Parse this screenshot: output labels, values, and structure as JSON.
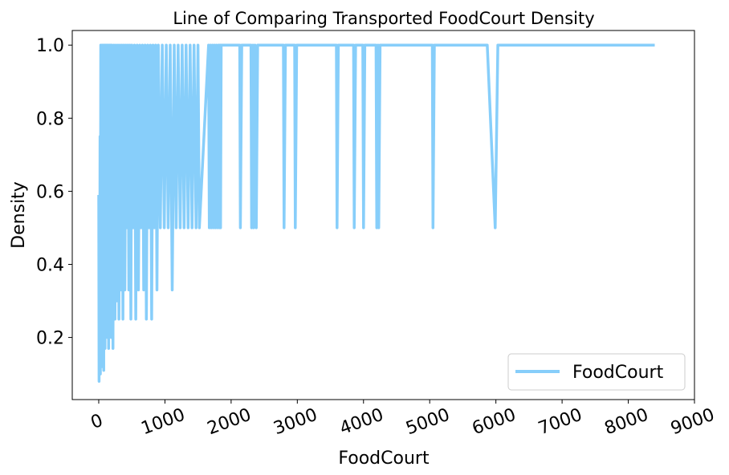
{
  "chart_data": {
    "type": "line",
    "title": "Line of Comparing Transported FoodCourt Density",
    "xlabel": "FoodCourt",
    "ylabel": "Density",
    "xlim": [
      -400,
      9000
    ],
    "ylim": [
      0.03,
      1.04
    ],
    "x_ticks": [
      0,
      1000,
      2000,
      3000,
      4000,
      5000,
      6000,
      7000,
      8000,
      9000
    ],
    "x_tick_labels": [
      "0",
      "1000",
      "2000",
      "3000",
      "4000",
      "5000",
      "6000",
      "7000",
      "8000",
      "9000"
    ],
    "x_tick_rotation_deg": 20,
    "y_ticks": [
      0.2,
      0.4,
      0.6,
      0.8,
      1.0
    ],
    "y_tick_labels": [
      "0.2",
      "0.4",
      "0.6",
      "0.8",
      "1.0"
    ],
    "grid": false,
    "legend": {
      "position": "lower-right",
      "entries": [
        "FoodCourt"
      ]
    },
    "series": [
      {
        "name": "FoodCourt",
        "color": "#87CEFA",
        "x": [
          0,
          5,
          10,
          15,
          20,
          25,
          30,
          35,
          40,
          45,
          50,
          55,
          60,
          65,
          70,
          75,
          80,
          85,
          90,
          95,
          100,
          110,
          120,
          130,
          140,
          150,
          160,
          170,
          180,
          190,
          200,
          215,
          230,
          245,
          260,
          275,
          290,
          305,
          320,
          335,
          350,
          365,
          380,
          395,
          410,
          425,
          440,
          455,
          470,
          485,
          500,
          520,
          540,
          560,
          580,
          600,
          620,
          640,
          660,
          680,
          700,
          720,
          740,
          760,
          780,
          800,
          820,
          840,
          860,
          880,
          900,
          930,
          960,
          990,
          1020,
          1050,
          1080,
          1110,
          1140,
          1170,
          1200,
          1230,
          1260,
          1290,
          1320,
          1350,
          1380,
          1410,
          1440,
          1470,
          1500,
          1520,
          1660,
          1670,
          1690,
          1700,
          1720,
          1730,
          1750,
          1760,
          1780,
          1790,
          1810,
          1820,
          1830,
          1840,
          1850,
          1860,
          2130,
          2140,
          2160,
          2300,
          2310,
          2330,
          2340,
          2360,
          2380,
          2400,
          2420,
          2790,
          2800,
          2820,
          2960,
          2970,
          2990,
          3590,
          3600,
          3620,
          3850,
          3860,
          3880,
          3990,
          4000,
          4020,
          4190,
          4200,
          4220,
          4230,
          4250,
          5040,
          5050,
          5070,
          5870,
          5990,
          6030,
          8400
        ],
        "y": [
          0.59,
          0.08,
          0.42,
          0.12,
          0.75,
          0.1,
          1.0,
          0.2,
          0.95,
          0.15,
          1.0,
          0.12,
          0.9,
          0.2,
          1.0,
          0.11,
          1.0,
          0.25,
          0.98,
          0.17,
          1.0,
          0.22,
          1.0,
          0.2,
          1.0,
          0.17,
          1.0,
          0.25,
          1.0,
          0.2,
          1.0,
          0.17,
          1.0,
          0.25,
          1.0,
          0.3,
          1.0,
          0.25,
          1.0,
          0.33,
          1.0,
          0.25,
          1.0,
          0.33,
          1.0,
          0.5,
          1.0,
          0.33,
          1.0,
          0.25,
          1.0,
          0.5,
          1.0,
          0.25,
          1.0,
          0.33,
          1.0,
          0.5,
          1.0,
          0.33,
          1.0,
          0.25,
          1.0,
          0.5,
          1.0,
          0.25,
          1.0,
          0.5,
          1.0,
          0.33,
          1.0,
          0.5,
          1.0,
          0.5,
          1.0,
          0.5,
          1.0,
          0.33,
          1.0,
          0.5,
          1.0,
          0.5,
          1.0,
          0.5,
          1.0,
          0.5,
          1.0,
          0.5,
          1.0,
          0.5,
          1.0,
          0.5,
          1.0,
          0.5,
          1.0,
          0.5,
          1.0,
          0.5,
          1.0,
          0.5,
          1.0,
          0.5,
          1.0,
          0.5,
          1.0,
          0.5,
          1.0,
          1.0,
          1.0,
          0.5,
          1.0,
          1.0,
          0.5,
          1.0,
          0.5,
          1.0,
          0.5,
          1.0,
          1.0,
          1.0,
          0.5,
          1.0,
          1.0,
          0.5,
          1.0,
          1.0,
          0.5,
          1.0,
          1.0,
          0.5,
          1.0,
          1.0,
          0.5,
          1.0,
          1.0,
          0.5,
          1.0,
          0.5,
          1.0,
          1.0,
          0.5,
          1.0,
          1.0,
          0.5,
          1.0,
          1.0
        ]
      }
    ]
  }
}
